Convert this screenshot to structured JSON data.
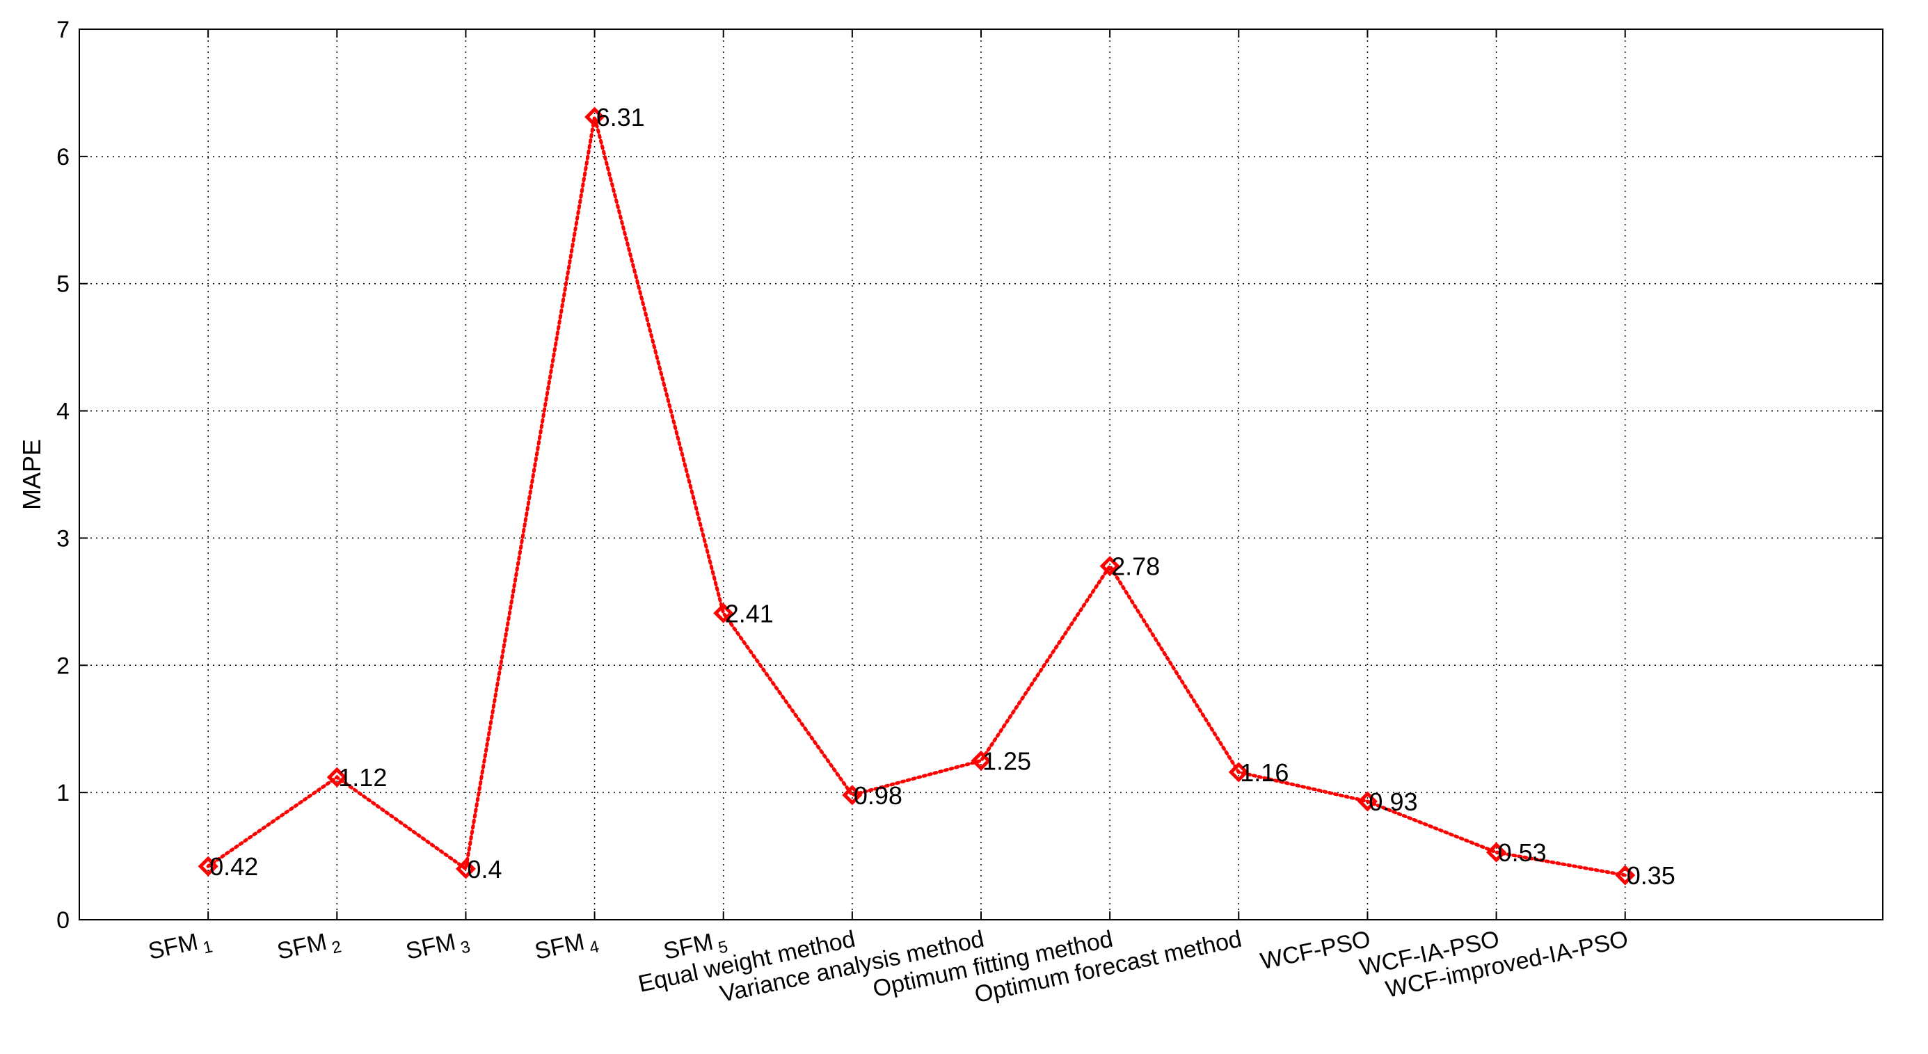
{
  "chart_data": {
    "type": "line",
    "ylabel": "MAPE",
    "xlabel": "",
    "title": "",
    "ylim": [
      0,
      7
    ],
    "yticks": [
      0,
      1,
      2,
      3,
      4,
      5,
      6,
      7
    ],
    "grid": true,
    "line_color": "#ff0000",
    "marker": "diamond",
    "categories": [
      {
        "base": "SFM",
        "sub": "1"
      },
      {
        "base": "SFM",
        "sub": "2"
      },
      {
        "base": "SFM",
        "sub": "3"
      },
      {
        "base": "SFM",
        "sub": "4"
      },
      {
        "base": "SFM",
        "sub": "5"
      },
      {
        "base": "Equal weight method",
        "sub": ""
      },
      {
        "base": "Variance analysis method",
        "sub": ""
      },
      {
        "base": "Optimum fitting method",
        "sub": ""
      },
      {
        "base": "Optimum forecast method",
        "sub": ""
      },
      {
        "base": "WCF-PSO",
        "sub": ""
      },
      {
        "base": "WCF-IA-PSO",
        "sub": ""
      },
      {
        "base": "WCF-improved-IA-PSO",
        "sub": ""
      }
    ],
    "values": [
      0.42,
      1.12,
      0.4,
      6.31,
      2.41,
      0.98,
      1.25,
      2.78,
      1.16,
      0.93,
      0.53,
      0.35
    ],
    "data_labels": [
      "0.42",
      "1.12",
      "0.4",
      "6.31",
      "2.41",
      "0.98",
      "1.25",
      "2.78",
      "1.16",
      "0.93",
      "0.53",
      "0.35"
    ]
  }
}
